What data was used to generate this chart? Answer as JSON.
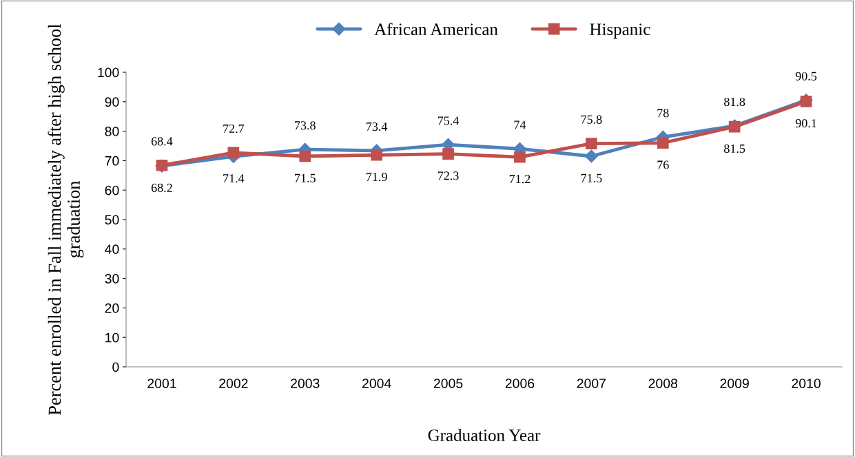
{
  "chart_data": {
    "type": "line",
    "xlabel": "Graduation Year",
    "ylabel": "Percent enrolled in Fall immediately after high school graduation",
    "categories": [
      "2001",
      "2002",
      "2003",
      "2004",
      "2005",
      "2006",
      "2007",
      "2008",
      "2009",
      "2010"
    ],
    "series": [
      {
        "name": "African American",
        "color": "#4f81bd",
        "marker": "diamond",
        "values": [
          68.2,
          71.4,
          73.8,
          73.4,
          75.4,
          74,
          71.5,
          78,
          81.8,
          90.5
        ]
      },
      {
        "name": "Hispanic",
        "color": "#c0504d",
        "marker": "square",
        "values": [
          68.4,
          72.7,
          71.5,
          71.9,
          72.3,
          71.2,
          75.8,
          76,
          81.5,
          90.1
        ]
      }
    ],
    "ylim": [
      0,
      100
    ],
    "yticks": [
      0,
      10,
      20,
      30,
      40,
      50,
      60,
      70,
      80,
      90,
      100
    ],
    "grid": false,
    "legend": "top",
    "data_labels": true,
    "line_style": "solid"
  }
}
